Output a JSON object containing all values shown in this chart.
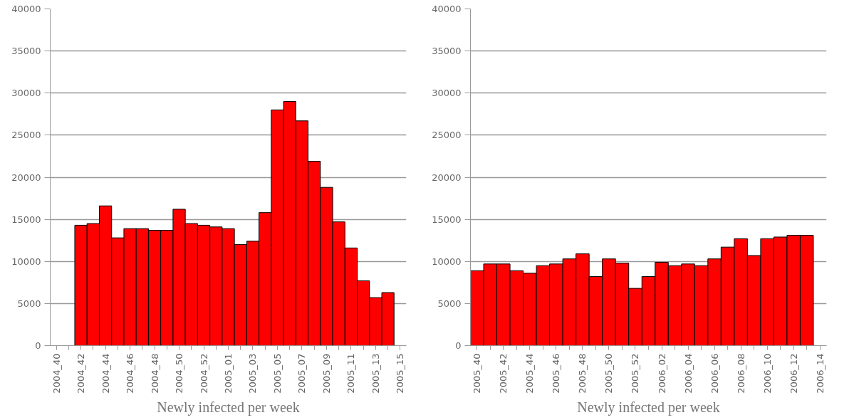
{
  "chart_data": [
    {
      "type": "bar",
      "xlabel": "Newly infected per week",
      "categories": [
        "2004_40",
        null,
        "2004_42",
        null,
        "2004_44",
        null,
        "2004_46",
        null,
        "2004_48",
        null,
        "2004_50",
        null,
        "2004_52",
        null,
        "2005_01",
        null,
        "2005_03",
        null,
        "2005_05",
        null,
        "2005_07",
        null,
        "2005_09",
        null,
        "2005_11",
        null,
        "2005_13",
        null,
        "2005_15"
      ],
      "values": [
        null,
        null,
        14300,
        14500,
        16600,
        12800,
        13900,
        13900,
        13700,
        13700,
        16200,
        14500,
        14300,
        14100,
        13900,
        12000,
        12400,
        15800,
        28000,
        29000,
        26700,
        21900,
        18800,
        14700,
        11600,
        7700,
        5700,
        6300,
        null
      ],
      "color": "#ff0000",
      "ylim": [
        0,
        40000
      ],
      "yticks": [
        0,
        5000,
        10000,
        15000,
        20000,
        25000,
        30000,
        35000,
        40000
      ],
      "grid": "y"
    },
    {
      "type": "bar",
      "xlabel": "Newly infected per week",
      "categories": [
        "2005_40",
        null,
        "2005_42",
        null,
        "2005_44",
        null,
        "2005_46",
        null,
        "2005_48",
        null,
        "2005_50",
        null,
        "2005_52",
        null,
        "2006_02",
        null,
        "2006_04",
        null,
        "2006_06",
        null,
        "2006_08",
        null,
        "2006_10",
        null,
        "2006_12",
        null,
        "2006_14"
      ],
      "values": [
        8900,
        9700,
        9700,
        8900,
        8600,
        9500,
        9700,
        10300,
        10900,
        8200,
        10300,
        9800,
        6800,
        8200,
        9900,
        9500,
        9700,
        9500,
        10300,
        11700,
        12700,
        10700,
        12700,
        12900,
        13100,
        13100,
        null
      ],
      "color": "#ff0000",
      "ylim": [
        0,
        40000
      ],
      "yticks": [
        0,
        5000,
        10000,
        15000,
        20000,
        25000,
        30000,
        35000,
        40000
      ],
      "grid": "y"
    }
  ]
}
